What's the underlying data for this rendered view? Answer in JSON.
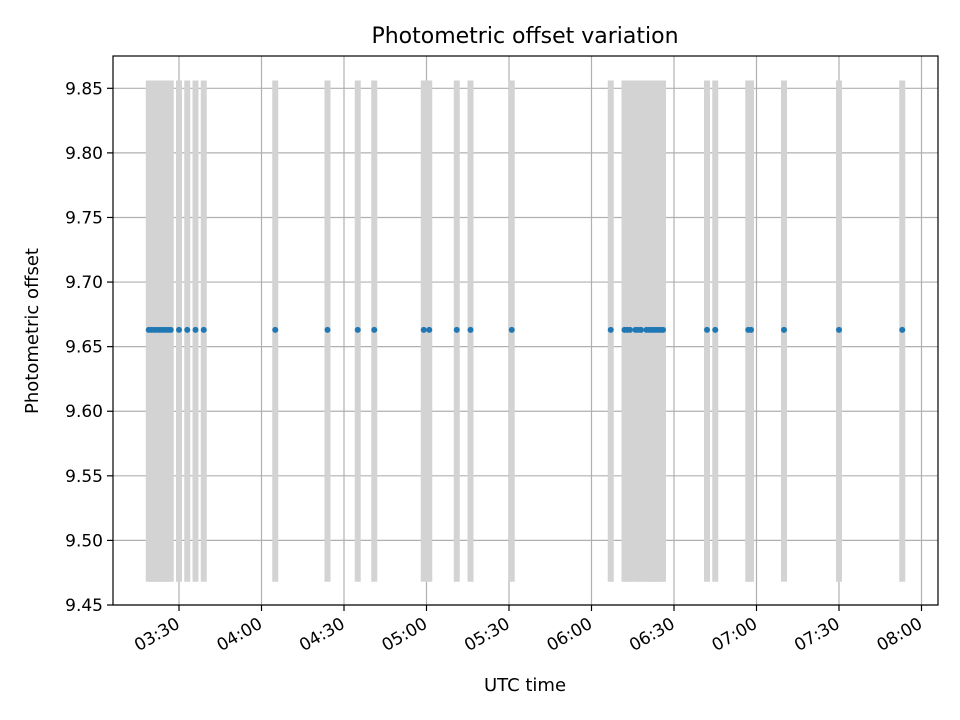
{
  "chart_data": {
    "type": "scatter",
    "title": "Photometric offset variation",
    "xlabel": "UTC time",
    "ylabel": "Photometric offset",
    "x_tick_labels": [
      "03:30",
      "04:00",
      "04:30",
      "05:00",
      "05:30",
      "06:00",
      "06:30",
      "07:00",
      "07:30",
      "08:00"
    ],
    "x_ticks": [
      "03:30",
      "04:00",
      "04:30",
      "05:00",
      "05:30",
      "06:00",
      "06:30",
      "07:00",
      "07:30",
      "08:00"
    ],
    "xlim": [
      "03:06",
      "08:06"
    ],
    "y_tick_labels": [
      "9.45",
      "9.50",
      "9.55",
      "9.60",
      "9.65",
      "9.70",
      "9.75",
      "9.80",
      "9.85"
    ],
    "y_ticks": [
      9.45,
      9.5,
      9.55,
      9.6,
      9.65,
      9.7,
      9.75,
      9.8,
      9.85
    ],
    "ylim": [
      9.45,
      9.875
    ],
    "grid": true,
    "point_color": "#1f77b4",
    "band_color": "#d3d3d3",
    "band_range": [
      9.468,
      9.856
    ],
    "series": [
      {
        "x": [
          "03:19",
          "03:20",
          "03:21",
          "03:22",
          "03:23",
          "03:24",
          "03:25",
          "03:26",
          "03:27",
          "03:30",
          "03:33",
          "03:36",
          "03:39",
          "04:05",
          "04:24",
          "04:35",
          "04:41",
          "04:59",
          "05:01",
          "05:11",
          "05:16",
          "05:31",
          "06:07",
          "06:12",
          "06:13",
          "06:14",
          "06:16",
          "06:17",
          "06:18",
          "06:20",
          "06:21",
          "06:22",
          "06:23",
          "06:24",
          "06:25",
          "06:26",
          "06:42",
          "06:45",
          "06:57",
          "06:58",
          "07:10",
          "07:30",
          "07:53"
        ],
        "y": [
          9.663,
          9.663,
          9.663,
          9.663,
          9.663,
          9.663,
          9.663,
          9.663,
          9.663,
          9.663,
          9.663,
          9.663,
          9.663,
          9.663,
          9.663,
          9.663,
          9.663,
          9.663,
          9.663,
          9.663,
          9.663,
          9.663,
          9.663,
          9.663,
          9.663,
          9.663,
          9.663,
          9.663,
          9.663,
          9.663,
          9.663,
          9.663,
          9.663,
          9.663,
          9.663,
          9.663,
          9.663,
          9.663,
          9.663,
          9.663,
          9.663,
          9.663,
          9.663
        ]
      }
    ]
  }
}
